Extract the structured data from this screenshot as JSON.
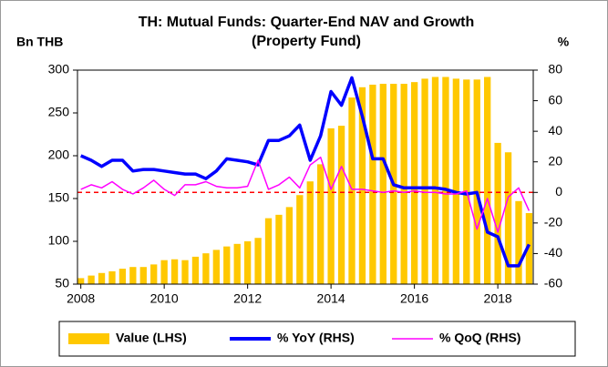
{
  "chart_data": {
    "type": "bar_line",
    "title": "TH: Mutual Funds: Quarter-End NAV and Growth",
    "subtitle": "(Property Fund)",
    "y_label": "Bn THB",
    "y2_label": "%",
    "x": [
      2008,
      2008.25,
      2008.5,
      2008.75,
      2009,
      2009.25,
      2009.5,
      2009.75,
      2010,
      2010.25,
      2010.5,
      2010.75,
      2011,
      2011.25,
      2011.5,
      2011.75,
      2012,
      2012.25,
      2012.5,
      2012.75,
      2013,
      2013.25,
      2013.5,
      2013.75,
      2014,
      2014.25,
      2014.5,
      2014.75,
      2015,
      2015.25,
      2015.5,
      2015.75,
      2016,
      2016.25,
      2016.5,
      2016.75,
      2017,
      2017.25,
      2017.5,
      2017.75,
      2018,
      2018.25,
      2018.5,
      2018.75
    ],
    "series": [
      {
        "name": "Value (LHS)",
        "kind": "bar",
        "axis": "y",
        "color": "#ffc800",
        "values": [
          57,
          60,
          63,
          65,
          68,
          70,
          70,
          73,
          78,
          79,
          78,
          82,
          86,
          90,
          94,
          97,
          100,
          104,
          127,
          131,
          140,
          154,
          170,
          190,
          232,
          235,
          268,
          280,
          283,
          284,
          284,
          284,
          286,
          290,
          292,
          292,
          290,
          289,
          289,
          292,
          215,
          204,
          147,
          133
        ]
      },
      {
        "name": "% YoY (RHS)",
        "kind": "line",
        "axis": "y2",
        "color": "#0000ff",
        "values": [
          24,
          21,
          17,
          21,
          21,
          14,
          15,
          15,
          14,
          13,
          12,
          12,
          9,
          14,
          22,
          21,
          20,
          18,
          34,
          34,
          37,
          44,
          21,
          37,
          66,
          57,
          75,
          50,
          22,
          22,
          5,
          3,
          3,
          3,
          3,
          2,
          0,
          -1,
          0,
          -26,
          -29,
          -48,
          -48,
          -34
        ]
      },
      {
        "name": "% QoQ (RHS)",
        "kind": "line",
        "axis": "y2",
        "color": "#ff00ff",
        "values": [
          2,
          5,
          3,
          7,
          2,
          -1,
          3,
          8,
          2,
          -2,
          5,
          5,
          7,
          4,
          3,
          3,
          4,
          21,
          2,
          5,
          10,
          3,
          18,
          23,
          2,
          17,
          2,
          2,
          1,
          0,
          1,
          0,
          1,
          0,
          0,
          -1,
          -1,
          1,
          -24,
          -4,
          -26,
          -3,
          3,
          -12
        ]
      }
    ],
    "xlim": [
      2007.92,
      2018.85
    ],
    "xticks": [
      2008,
      2010,
      2012,
      2014,
      2016,
      2018
    ],
    "ylim": [
      50,
      300
    ],
    "yticks": [
      50,
      100,
      150,
      200,
      250,
      300
    ],
    "y2lim": [
      -60,
      80
    ],
    "y2ticks": [
      -60,
      -40,
      -20,
      0,
      20,
      40,
      60,
      80
    ],
    "reference_lines": [
      {
        "axis": "y2",
        "value": 0,
        "color": "#ff0000"
      }
    ],
    "legend": "bottom"
  }
}
